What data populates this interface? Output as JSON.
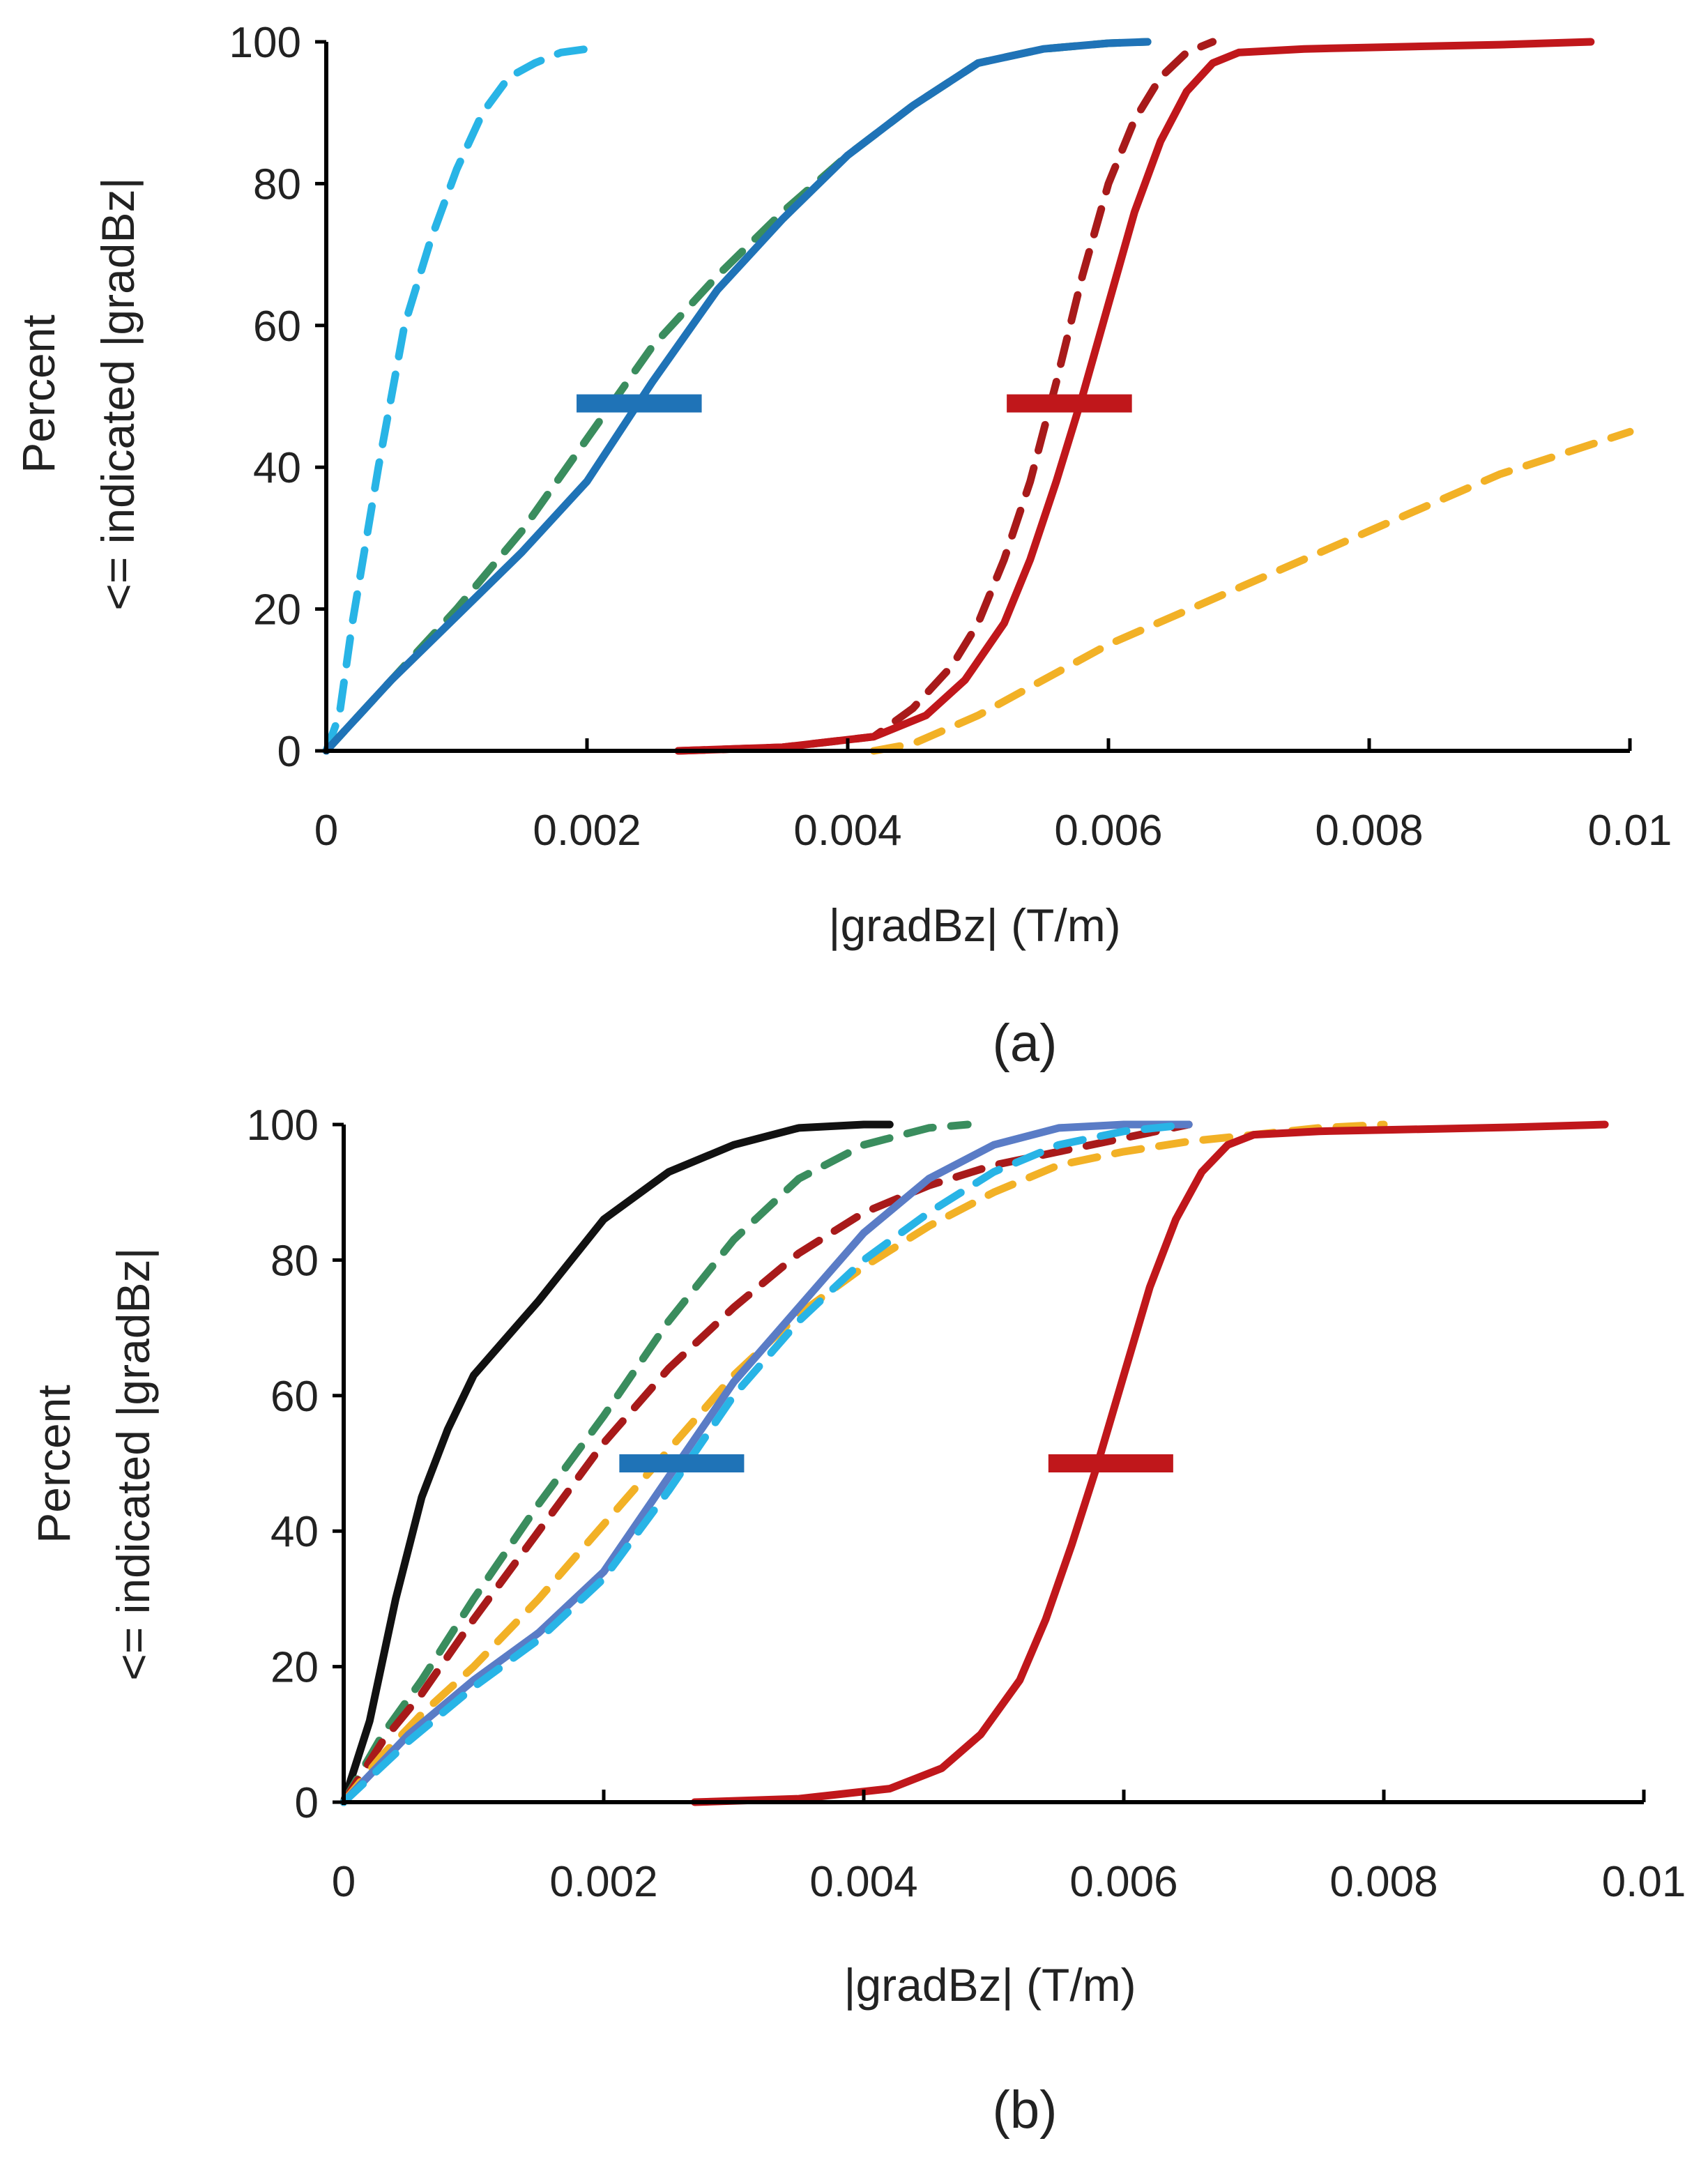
{
  "chart_data": [
    {
      "type": "line",
      "panel_label": "(a)",
      "xlabel": "|gradBz| (T/m)",
      "ylabel_lines": [
        "Percent",
        "<= indicated |gradBz|"
      ],
      "xlim": [
        0,
        0.01
      ],
      "ylim": [
        0,
        100
      ],
      "x_ticks": [
        0,
        0.002,
        0.004,
        0.006,
        0.008,
        0.01
      ],
      "x_tick_labels": [
        "0",
        "0.002",
        "0.004",
        "0.006",
        "0.008",
        "0.01"
      ],
      "y_ticks": [
        0,
        20,
        40,
        60,
        80,
        100
      ],
      "y_tick_labels": [
        "0",
        "20",
        "40",
        "60",
        "80",
        "100"
      ],
      "series": [
        {
          "name": "light-blue-dashed",
          "color": "#28B4E6",
          "style": "dashed",
          "x": [
            0,
            0.0001,
            0.0002,
            0.0004,
            0.0006,
            0.0008,
            0.001,
            0.0012,
            0.0014,
            0.0016,
            0.0018,
            0.002
          ],
          "y": [
            0,
            5,
            18,
            40,
            60,
            72,
            82,
            90,
            95,
            97,
            98.5,
            99
          ]
        },
        {
          "name": "green-dashed",
          "color": "#3A8D5E",
          "style": "dashed",
          "x": [
            0,
            0.0005,
            0.001,
            0.0015,
            0.002,
            0.0025,
            0.003,
            0.0035,
            0.004,
            0.0045,
            0.005,
            0.0055,
            0.006,
            0.0063
          ],
          "y": [
            0,
            10,
            20,
            31,
            44,
            57,
            67,
            76,
            84,
            91,
            97,
            99,
            99.8,
            100
          ]
        },
        {
          "name": "blue-solid",
          "color": "#1F73B7",
          "style": "solid",
          "x": [
            0,
            0.0005,
            0.001,
            0.0015,
            0.002,
            0.0025,
            0.003,
            0.0035,
            0.004,
            0.0045,
            0.005,
            0.0055,
            0.006,
            0.0063
          ],
          "y": [
            0,
            10,
            19,
            28,
            38,
            52,
            65,
            75,
            84,
            91,
            97,
            99,
            99.8,
            100
          ]
        },
        {
          "name": "dark-red-dashed",
          "color": "#A81A1A",
          "style": "dashed",
          "x": [
            0.0027,
            0.0035,
            0.0042,
            0.0045,
            0.0048,
            0.005,
            0.0052,
            0.0054,
            0.0056,
            0.0058,
            0.006,
            0.0062,
            0.0064,
            0.0066,
            0.0068
          ],
          "y": [
            0,
            0.5,
            2,
            6,
            12,
            18,
            27,
            38,
            52,
            67,
            80,
            89,
            95,
            98.5,
            100
          ]
        },
        {
          "name": "red-solid",
          "color": "#C0171B",
          "style": "solid",
          "x": [
            0.0027,
            0.0035,
            0.0042,
            0.0046,
            0.0049,
            0.0052,
            0.0054,
            0.0056,
            0.0058,
            0.006,
            0.0062,
            0.0064,
            0.0066,
            0.0068,
            0.007,
            0.0075,
            0.008,
            0.009,
            0.0097
          ],
          "y": [
            0,
            0.5,
            2,
            5,
            10,
            18,
            27,
            38,
            50,
            63,
            76,
            86,
            93,
            97,
            98.5,
            99,
            99.2,
            99.6,
            100
          ]
        },
        {
          "name": "orange-dashed",
          "color": "#F2B126",
          "style": "dashed",
          "x": [
            0.0042,
            0.0045,
            0.005,
            0.0055,
            0.006,
            0.0065,
            0.007,
            0.0075,
            0.008,
            0.0085,
            0.009,
            0.0095,
            0.01
          ],
          "y": [
            0,
            1,
            5,
            10,
            15,
            19,
            23,
            27,
            31,
            35,
            39,
            42,
            45
          ]
        }
      ],
      "markers": [
        {
          "name": "blue-median-marker",
          "color": "#1F73B7",
          "x_center": 0.0024,
          "half_width": 0.00048,
          "y": 49
        },
        {
          "name": "red-median-marker",
          "color": "#C0171B",
          "x_center": 0.0057,
          "half_width": 0.00048,
          "y": 49
        }
      ]
    },
    {
      "type": "line",
      "panel_label": "(b)",
      "xlabel": "|gradBz| (T/m)",
      "ylabel_lines": [
        "Percent",
        "<= indicated |gradBz|"
      ],
      "xlim": [
        0,
        0.01
      ],
      "ylim": [
        0,
        100
      ],
      "x_ticks": [
        0,
        0.002,
        0.004,
        0.006,
        0.008,
        0.01
      ],
      "x_tick_labels": [
        "0",
        "0.002",
        "0.004",
        "0.006",
        "0.008",
        "0.01"
      ],
      "y_ticks": [
        0,
        20,
        40,
        60,
        80,
        100
      ],
      "y_tick_labels": [
        "0",
        "20",
        "40",
        "60",
        "80",
        "100"
      ],
      "series": [
        {
          "name": "black-solid",
          "color": "#111111",
          "style": "solid",
          "x": [
            0,
            0.0002,
            0.0004,
            0.0006,
            0.0008,
            0.001,
            0.0015,
            0.002,
            0.0025,
            0.003,
            0.0035,
            0.004,
            0.0042
          ],
          "y": [
            0,
            12,
            30,
            45,
            55,
            63,
            74,
            86,
            93,
            97,
            99.5,
            100,
            100
          ]
        },
        {
          "name": "green-dashed",
          "color": "#3A8D5E",
          "style": "dashed",
          "x": [
            0,
            0.0003,
            0.0006,
            0.001,
            0.0015,
            0.002,
            0.0025,
            0.003,
            0.0035,
            0.004,
            0.0045,
            0.0048
          ],
          "y": [
            0,
            10,
            18,
            30,
            44,
            57,
            71,
            83,
            92,
            97,
            99.5,
            100
          ]
        },
        {
          "name": "dark-red-dashed",
          "color": "#A81A1A",
          "style": "dashed",
          "x": [
            0,
            0.0003,
            0.0006,
            0.001,
            0.0015,
            0.002,
            0.0025,
            0.003,
            0.0035,
            0.004,
            0.0045,
            0.005,
            0.0055,
            0.006,
            0.0065
          ],
          "y": [
            0,
            9,
            16,
            27,
            40,
            53,
            64,
            73,
            81,
            87,
            91,
            94,
            96,
            98,
            100
          ]
        },
        {
          "name": "orange-dashed",
          "color": "#F2B126",
          "style": "dashed",
          "x": [
            0,
            0.0003,
            0.0006,
            0.001,
            0.0015,
            0.002,
            0.0025,
            0.003,
            0.0035,
            0.004,
            0.0045,
            0.005,
            0.0055,
            0.006,
            0.0065,
            0.007,
            0.0075,
            0.008
          ],
          "y": [
            0,
            7,
            13,
            20,
            30,
            41,
            52,
            63,
            72,
            79,
            85,
            90,
            94,
            96,
            97.5,
            98.5,
            99.5,
            100
          ]
        },
        {
          "name": "slate-blue-solid",
          "color": "#5A7CC6",
          "style": "solid",
          "x": [
            0,
            0.0005,
            0.001,
            0.0015,
            0.002,
            0.0025,
            0.003,
            0.0035,
            0.004,
            0.0045,
            0.005,
            0.0055,
            0.006,
            0.0065
          ],
          "y": [
            0,
            10,
            18,
            25,
            34,
            48,
            62,
            73,
            84,
            92,
            97,
            99.5,
            100,
            100
          ]
        },
        {
          "name": "light-blue-dashed",
          "color": "#28B4E6",
          "style": "dashed",
          "x": [
            0,
            0.0005,
            0.001,
            0.0015,
            0.002,
            0.0025,
            0.003,
            0.0035,
            0.004,
            0.0045,
            0.005,
            0.0055,
            0.006,
            0.0065
          ],
          "y": [
            0,
            9,
            17,
            24,
            33,
            46,
            60,
            71,
            80,
            87,
            93,
            97,
            99,
            100
          ]
        },
        {
          "name": "red-solid",
          "color": "#C0171B",
          "style": "solid",
          "x": [
            0.0027,
            0.0035,
            0.0042,
            0.0046,
            0.0049,
            0.0052,
            0.0054,
            0.0056,
            0.0058,
            0.006,
            0.0062,
            0.0064,
            0.0066,
            0.0068,
            0.007,
            0.0075,
            0.008,
            0.009,
            0.0097
          ],
          "y": [
            0,
            0.5,
            2,
            5,
            10,
            18,
            27,
            38,
            50,
            63,
            76,
            86,
            93,
            97,
            98.5,
            99,
            99.2,
            99.6,
            100
          ]
        }
      ],
      "markers": [
        {
          "name": "blue-median-marker",
          "color": "#1F73B7",
          "x_center": 0.0026,
          "half_width": 0.00048,
          "y": 50
        },
        {
          "name": "red-median-marker",
          "color": "#C0171B",
          "x_center": 0.0059,
          "half_width": 0.00048,
          "y": 50
        }
      ]
    }
  ]
}
